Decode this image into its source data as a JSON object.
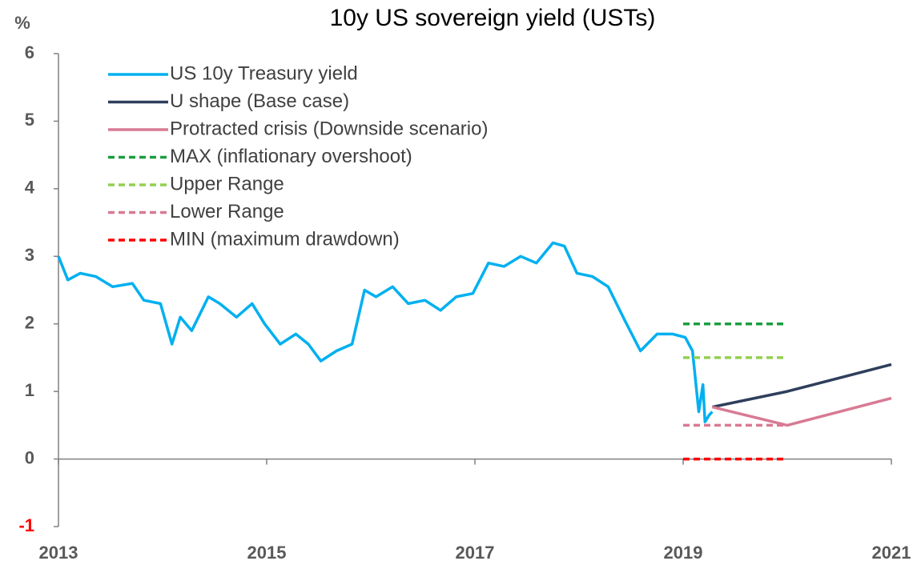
{
  "chart_data": {
    "type": "line",
    "title": "10y US sovereign yield (USTs)",
    "y_label": "%",
    "xlim": [
      2013,
      2021
    ],
    "xticks": [
      2013,
      2015,
      2017,
      2019,
      2021
    ],
    "ylim": [
      -1,
      6
    ],
    "yticks": [
      -1,
      0,
      1,
      2,
      3,
      4,
      5,
      6
    ],
    "ytick_label_colors": [
      "#ff0000",
      "#595959",
      "#595959",
      "#595959",
      "#595959",
      "#595959",
      "#595959",
      "#595959"
    ],
    "legend": "upper left",
    "series": [
      {
        "name": "US 10y Treasury yield",
        "color": "#00b0f0",
        "style": "solid",
        "x": [
          2013.0,
          2013.09,
          2013.21,
          2013.36,
          2013.52,
          2013.71,
          2013.82,
          2013.98,
          2014.09,
          2014.17,
          2014.28,
          2014.44,
          2014.55,
          2014.71,
          2014.86,
          2014.98,
          2015.13,
          2015.28,
          2015.4,
          2015.52,
          2015.67,
          2015.82,
          2015.94,
          2016.05,
          2016.21,
          2016.36,
          2016.52,
          2016.67,
          2016.82,
          2016.98,
          2017.13,
          2017.28,
          2017.44,
          2017.59,
          2017.75,
          2017.86,
          2017.98,
          2018.13,
          2018.28,
          2018.44,
          2018.59,
          2018.75,
          2018.9,
          2019.02,
          2019.09,
          2019.15,
          2019.19,
          2019.21,
          2019.25,
          2019.28
        ],
        "values": [
          3.0,
          2.65,
          2.75,
          2.7,
          2.55,
          2.6,
          2.35,
          2.3,
          1.7,
          2.1,
          1.9,
          2.4,
          2.3,
          2.1,
          2.3,
          2.0,
          1.7,
          1.85,
          1.7,
          1.45,
          1.6,
          1.7,
          2.5,
          2.4,
          2.55,
          2.3,
          2.35,
          2.2,
          2.4,
          2.45,
          2.9,
          2.85,
          3.0,
          2.9,
          3.2,
          3.15,
          2.75,
          2.7,
          2.55,
          2.05,
          1.6,
          1.85,
          1.85,
          1.8,
          1.6,
          0.7,
          1.1,
          0.55,
          0.65,
          0.7
        ]
      },
      {
        "name": "U shape (Base case)",
        "color": "#2e3f5c",
        "style": "solid",
        "x": [
          2019.28,
          2020,
          2021
        ],
        "values": [
          0.77,
          1.0,
          1.4
        ]
      },
      {
        "name": "Protracted crisis (Downside scenario)",
        "color": "#d87a94",
        "style": "solid",
        "x": [
          2019.28,
          2020,
          2021
        ],
        "values": [
          0.77,
          0.5,
          0.9
        ]
      },
      {
        "name": "MAX (inflationary overshoot)",
        "color": "#1a9e3f",
        "style": "dashed",
        "x": [
          2019,
          2020
        ],
        "values": [
          2.0,
          2.0
        ]
      },
      {
        "name": "Upper Range",
        "color": "#92d050",
        "style": "dashed",
        "x": [
          2019,
          2020
        ],
        "values": [
          1.5,
          1.5
        ]
      },
      {
        "name": "Lower Range",
        "color": "#d87a94",
        "style": "dashed",
        "x": [
          2019,
          2020
        ],
        "values": [
          0.5,
          0.5
        ]
      },
      {
        "name": "MIN (maximum drawdown)",
        "color": "#ff0000",
        "style": "dashed",
        "x": [
          2019,
          2020
        ],
        "values": [
          0,
          0
        ]
      }
    ]
  }
}
